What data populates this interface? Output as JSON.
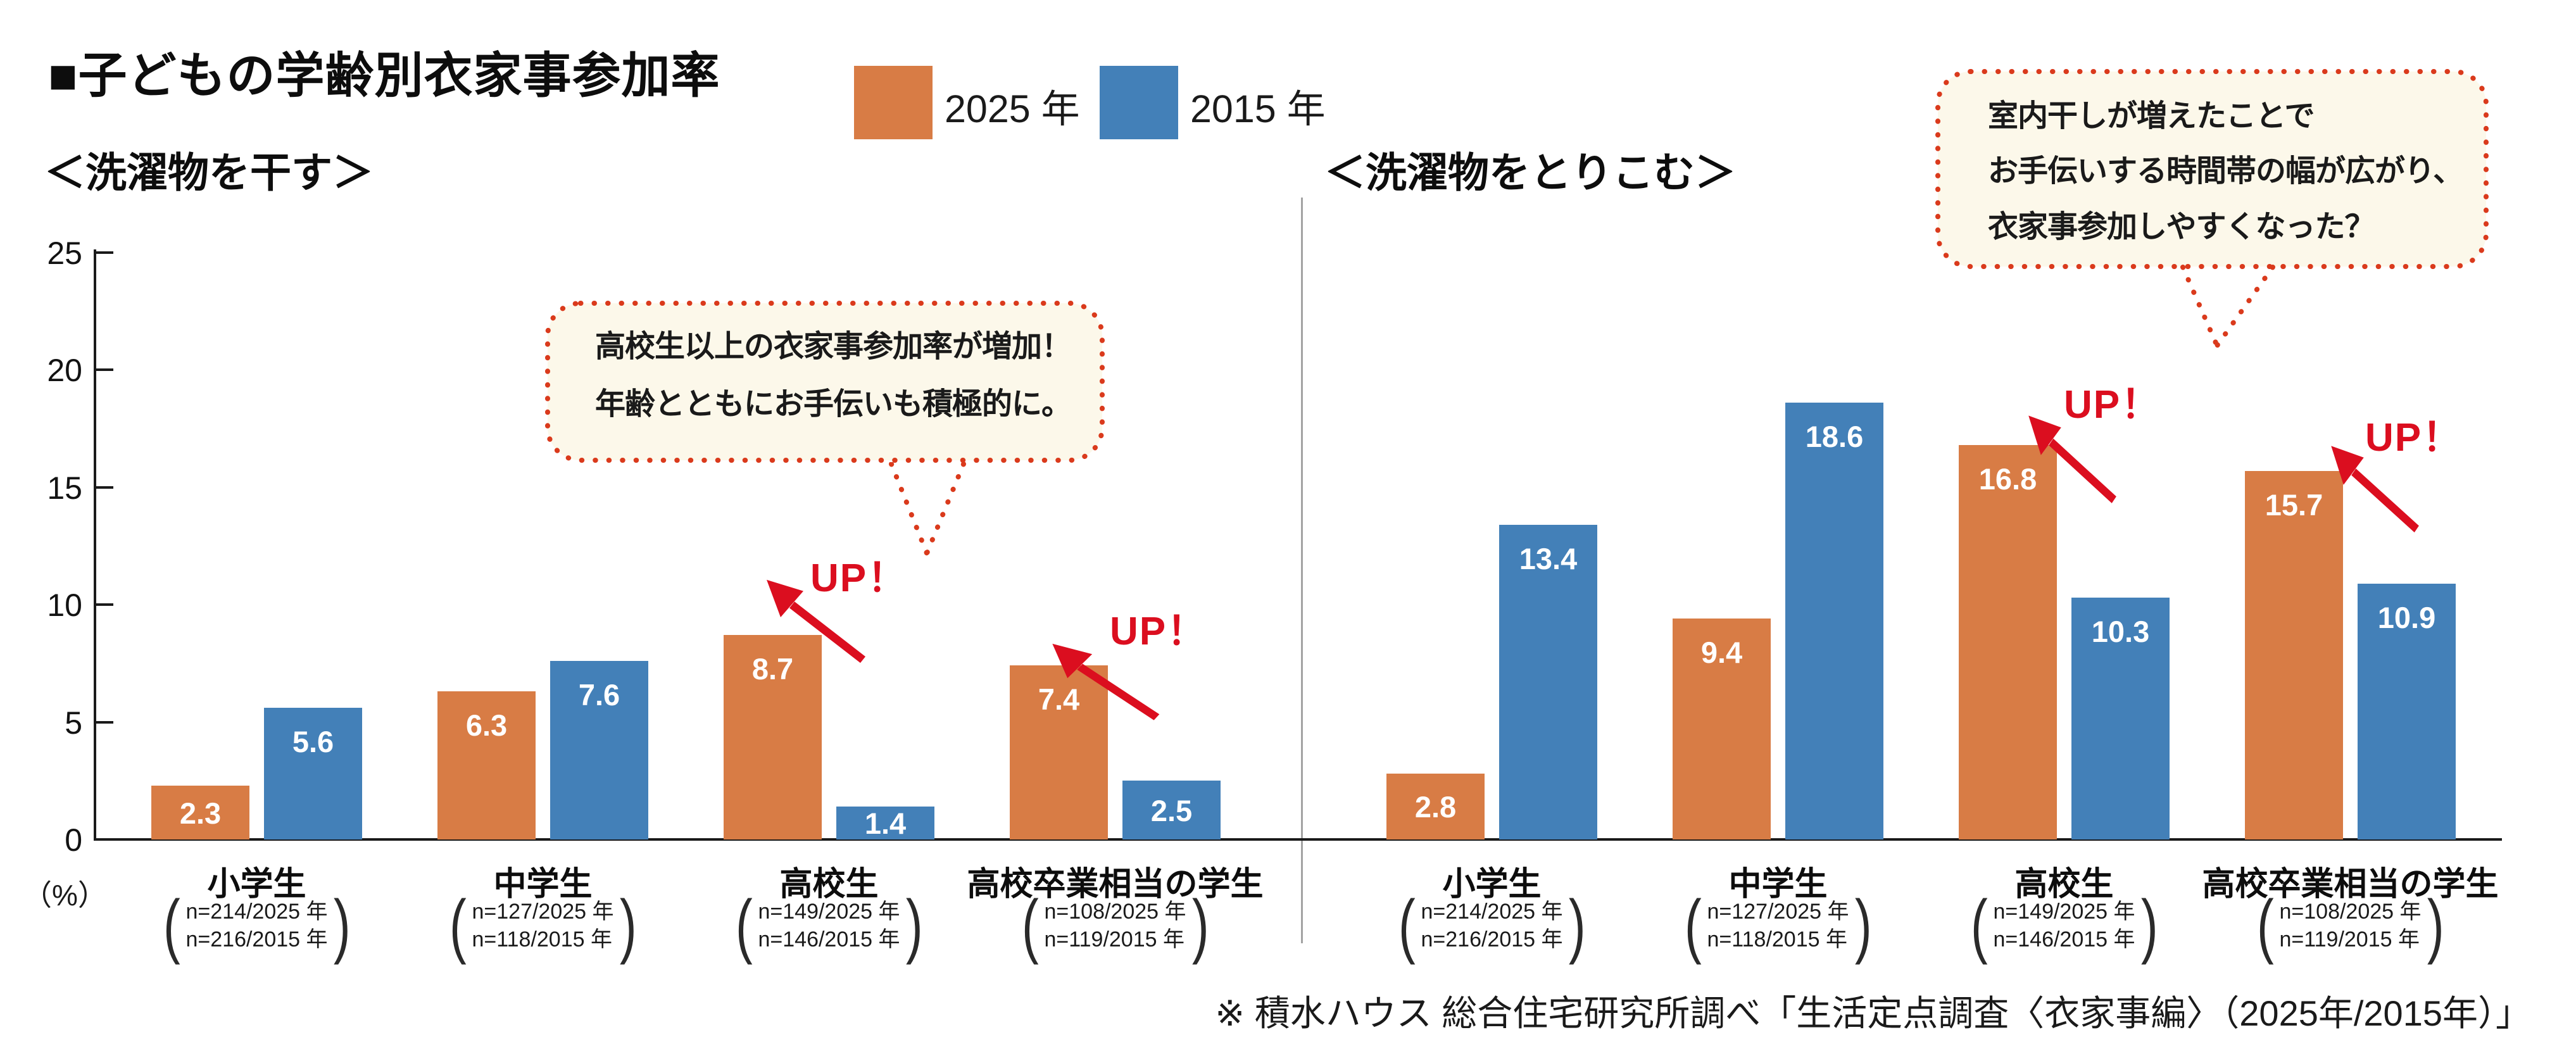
{
  "header": {
    "title": "■子どもの学齢別衣家事参加率"
  },
  "legend": {
    "items": [
      {
        "label": "2025 年",
        "color": "#D87C45"
      },
      {
        "label": "2015 年",
        "color": "#4380B8"
      }
    ]
  },
  "labels": {
    "up": "UP！"
  },
  "footer": {
    "note": "※ 積水ハウス 総合住宅研究所調べ「生活定点調査〈衣家事編〉（2025年/2015年）」"
  },
  "colors": {
    "bar_2025": "#D87C45",
    "bar_2015": "#4380B8",
    "up_red": "#DB0E1F",
    "bubble_bg": "#FCF8EA",
    "bubble_border": "#DA3A1C",
    "axis": "#1A1A1A",
    "divider": "#A3A3A3"
  },
  "chart_data": [
    {
      "type": "bar",
      "title": "＜洗濯物を干す＞",
      "categories": [
        "小学生",
        "中学生",
        "高校生",
        "高校卒業相当の学生"
      ],
      "series": [
        {
          "name": "2025 年",
          "values": [
            2.3,
            6.3,
            8.7,
            7.4
          ]
        },
        {
          "name": "2015 年",
          "values": [
            5.6,
            7.6,
            1.4,
            2.5
          ]
        }
      ],
      "sample_notes": [
        [
          "n=214/2025 年",
          "n=216/2015 年"
        ],
        [
          "n=127/2025 年",
          "n=118/2015 年"
        ],
        [
          "n=149/2025 年",
          "n=146/2015 年"
        ],
        [
          "n=108/2025 年",
          "n=119/2015 年"
        ]
      ],
      "ylim": [
        0,
        25
      ],
      "y_ticks": [
        0,
        5,
        10,
        15,
        20,
        25
      ],
      "y_unit": "（%）",
      "grid": false,
      "legend_position": "top",
      "annotation": {
        "lines": [
          "高校生以上の衣家事参加率が増加！",
          "年齢とともにお手伝いも積極的に。"
        ]
      },
      "up_marks": [
        "高校生",
        "高校卒業相当の学生"
      ]
    },
    {
      "type": "bar",
      "title": "＜洗濯物をとりこむ＞",
      "categories": [
        "小学生",
        "中学生",
        "高校生",
        "高校卒業相当の学生"
      ],
      "series": [
        {
          "name": "2025 年",
          "values": [
            2.8,
            9.4,
            16.8,
            15.7
          ]
        },
        {
          "name": "2015 年",
          "values": [
            13.4,
            18.6,
            10.3,
            10.9
          ]
        }
      ],
      "sample_notes": [
        [
          "n=214/2025 年",
          "n=216/2015 年"
        ],
        [
          "n=127/2025 年",
          "n=118/2015 年"
        ],
        [
          "n=149/2025 年",
          "n=146/2015 年"
        ],
        [
          "n=108/2025 年",
          "n=119/2015 年"
        ]
      ],
      "ylim": [
        0,
        25
      ],
      "y_ticks": [
        0,
        5,
        10,
        15,
        20,
        25
      ],
      "y_unit": "（%）",
      "grid": false,
      "legend_position": "top",
      "annotation": {
        "lines": [
          "室内干しが増えたことで",
          "お手伝いする時間帯の幅が広がり、",
          "衣家事参加しやすくなった？"
        ]
      },
      "up_marks": [
        "高校生",
        "高校卒業相当の学生"
      ]
    }
  ]
}
